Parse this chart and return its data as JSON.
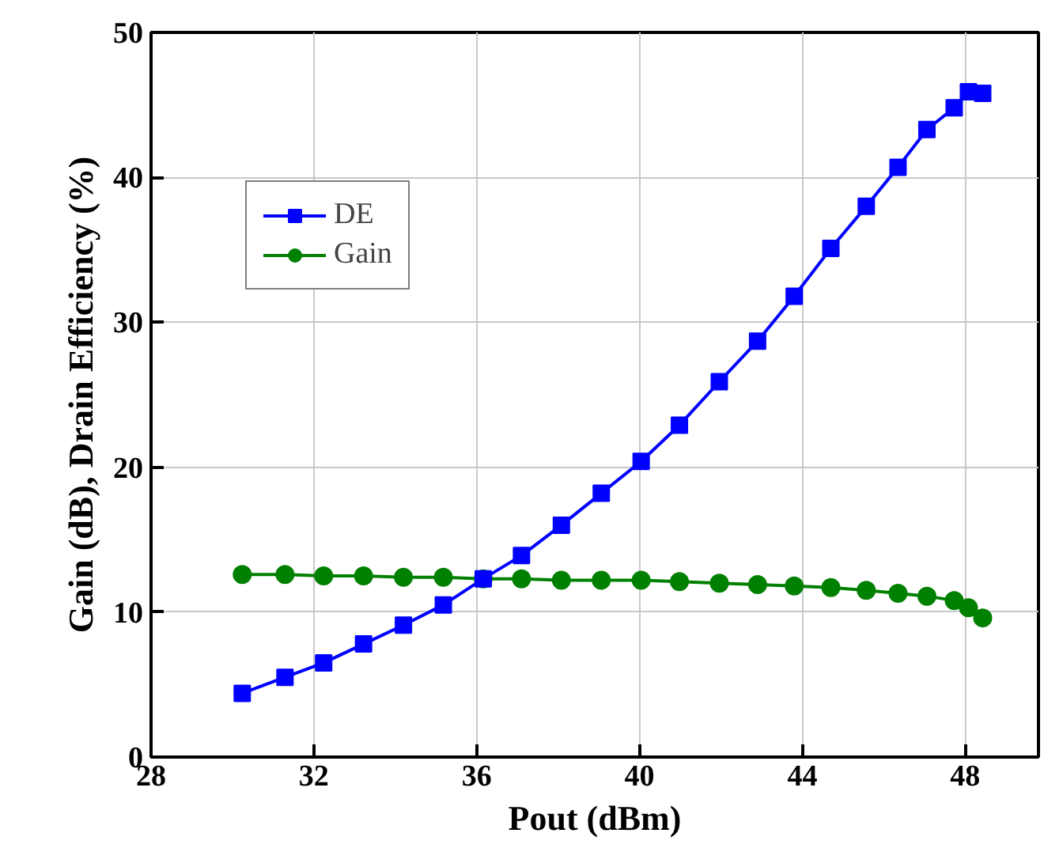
{
  "chart_data": {
    "type": "line",
    "xlabel": "Pout (dBm)",
    "ylabel": "Gain (dB), Drain Efficiency (%)",
    "xlim": [
      28,
      49.8
    ],
    "ylim": [
      0,
      50
    ],
    "xticks": [
      28,
      32,
      36,
      40,
      44,
      48
    ],
    "yticks": [
      0,
      10,
      20,
      30,
      40,
      50
    ],
    "grid": true,
    "legend": "top left",
    "line_style": "solid",
    "x": [
      30.24,
      31.29,
      32.24,
      33.22,
      34.2,
      35.18,
      36.16,
      37.1,
      38.08,
      39.06,
      40.04,
      40.98,
      41.96,
      42.9,
      43.8,
      44.7,
      45.57,
      46.35,
      47.06,
      47.73,
      48.08,
      48.43
    ],
    "series": [
      {
        "name": "DE",
        "color": "#0000ff",
        "marker": "square",
        "values": [
          4.4,
          5.5,
          6.5,
          7.8,
          9.1,
          10.5,
          12.3,
          13.9,
          16.0,
          18.2,
          20.4,
          22.9,
          25.9,
          28.7,
          31.8,
          35.1,
          38.0,
          40.7,
          43.3,
          44.8,
          45.9,
          45.8
        ]
      },
      {
        "name": "Gain",
        "color": "#008000",
        "marker": "circle",
        "values": [
          12.6,
          12.6,
          12.5,
          12.5,
          12.4,
          12.4,
          12.3,
          12.3,
          12.2,
          12.2,
          12.2,
          12.1,
          12.0,
          11.9,
          11.8,
          11.7,
          11.5,
          11.3,
          11.1,
          10.8,
          10.3,
          9.6
        ]
      }
    ]
  }
}
